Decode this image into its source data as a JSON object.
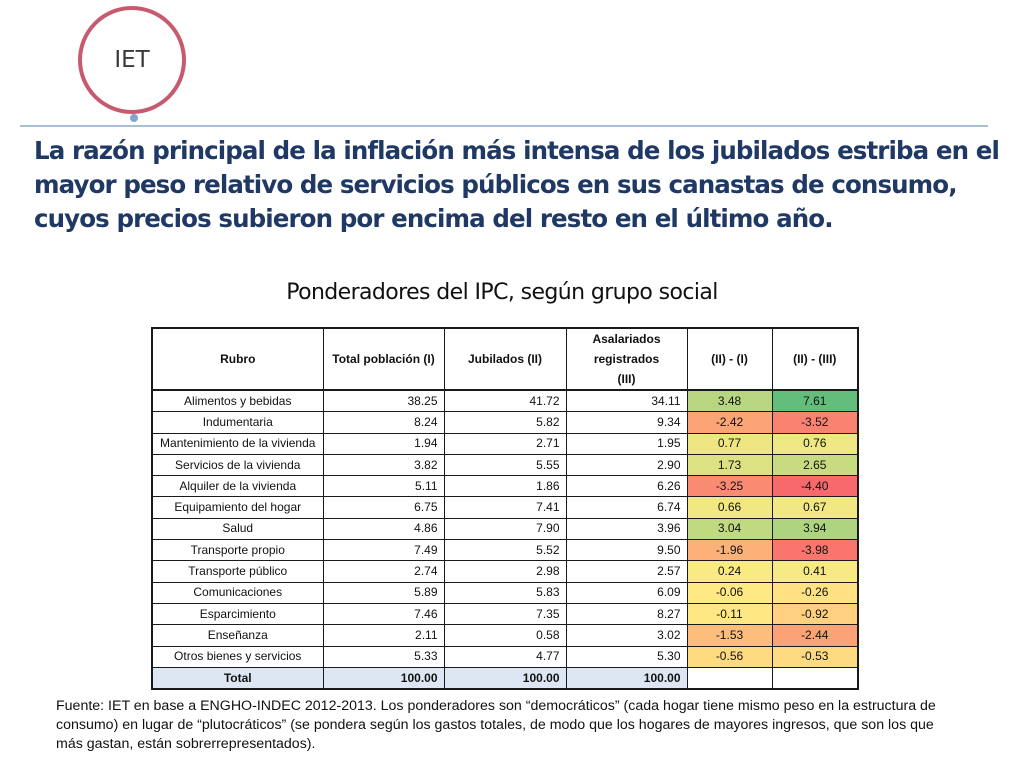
{
  "logo": {
    "text": "IET",
    "ring_color": "#c75a6f",
    "dot_color": "#7fa7d1"
  },
  "headline": "La razón principal de la inflación más intensa de los jubilados estriba en el mayor peso relativo de servicios públicos en sus canastas de consumo, cuyos precios subieron por encima del resto en el último año.",
  "table": {
    "title": "Ponderadores del IPC, según grupo social",
    "headers": [
      "Rubro",
      "Total población (I)",
      "Jubilados (II)",
      "Asalariados registrados (III)",
      "(II) - (I)",
      "(II) - (III)"
    ],
    "rows": [
      {
        "rubro": "Alimentos y bebidas",
        "total": "38.25",
        "jubilados": "41.72",
        "asalariados": "34.11",
        "dif_i": "3.48",
        "dif_iii": "7.61"
      },
      {
        "rubro": "Indumentaria",
        "total": "8.24",
        "jubilados": "5.82",
        "asalariados": "9.34",
        "dif_i": "-2.42",
        "dif_iii": "-3.52"
      },
      {
        "rubro": "Mantenimiento de la vivienda",
        "total": "1.94",
        "jubilados": "2.71",
        "asalariados": "1.95",
        "dif_i": "0.77",
        "dif_iii": "0.76"
      },
      {
        "rubro": "Servicios de la vivienda",
        "total": "3.82",
        "jubilados": "5.55",
        "asalariados": "2.90",
        "dif_i": "1.73",
        "dif_iii": "2.65"
      },
      {
        "rubro": "Alquiler de la vivienda",
        "total": "5.11",
        "jubilados": "1.86",
        "asalariados": "6.26",
        "dif_i": "-3.25",
        "dif_iii": "-4.40"
      },
      {
        "rubro": "Equipamiento del hogar",
        "total": "6.75",
        "jubilados": "7.41",
        "asalariados": "6.74",
        "dif_i": "0.66",
        "dif_iii": "0.67"
      },
      {
        "rubro": "Salud",
        "total": "4.86",
        "jubilados": "7.90",
        "asalariados": "3.96",
        "dif_i": "3.04",
        "dif_iii": "3.94"
      },
      {
        "rubro": "Transporte propio",
        "total": "7.49",
        "jubilados": "5.52",
        "asalariados": "9.50",
        "dif_i": "-1.96",
        "dif_iii": "-3.98"
      },
      {
        "rubro": "Transporte público",
        "total": "2.74",
        "jubilados": "2.98",
        "asalariados": "2.57",
        "dif_i": "0.24",
        "dif_iii": "0.41"
      },
      {
        "rubro": "Comunicaciones",
        "total": "5.89",
        "jubilados": "5.83",
        "asalariados": "6.09",
        "dif_i": "-0.06",
        "dif_iii": "-0.26"
      },
      {
        "rubro": "Esparcimiento",
        "total": "7.46",
        "jubilados": "7.35",
        "asalariados": "8.27",
        "dif_i": "-0.11",
        "dif_iii": "-0.92"
      },
      {
        "rubro": "Enseñanza",
        "total": "2.11",
        "jubilados": "0.58",
        "asalariados": "3.02",
        "dif_i": "-1.53",
        "dif_iii": "-2.44"
      },
      {
        "rubro": "Otros bienes y servicios",
        "total": "5.33",
        "jubilados": "4.77",
        "asalariados": "5.30",
        "dif_i": "-0.56",
        "dif_iii": "-0.53"
      }
    ],
    "total_row": {
      "rubro": "Total",
      "total": "100.00",
      "jubilados": "100.00",
      "asalariados": "100.00",
      "dif_i": "",
      "dif_iii": ""
    }
  },
  "source": "Fuente: IET en base a ENGHO-INDEC 2012-2013. Los ponderadores son “democráticos” (cada hogar tiene mismo peso en la estructura de consumo) en lugar de “plutocráticos” (se pondera según los gastos totales, de modo que los hogares de mayores ingresos, que son los que más gastan, están sobrerrepresentados)."
}
